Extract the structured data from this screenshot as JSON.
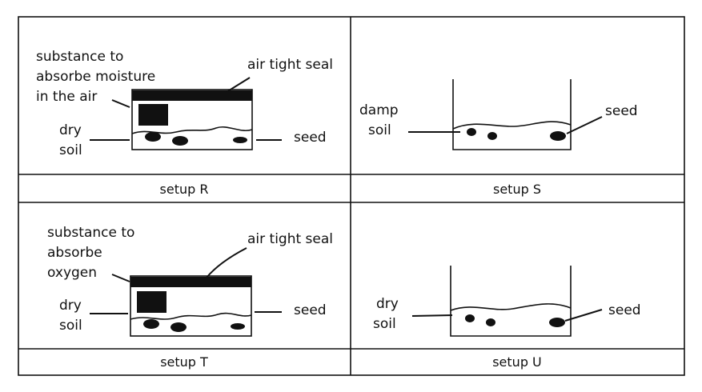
{
  "setups": {
    "r": {
      "caption": "setup R",
      "label_substance_1": "substance to",
      "label_substance_2": "absorbe moisture",
      "label_substance_3": "in the air",
      "label_seal": "air tight seal",
      "label_soil_1": "dry",
      "label_soil_2": "soil",
      "label_seed": "seed"
    },
    "s": {
      "caption": "setup S",
      "label_soil_1": "damp",
      "label_soil_2": "soil",
      "label_seed": "seed"
    },
    "t": {
      "caption": "setup T",
      "label_substance_1": "substance to",
      "label_substance_2": "absorbe",
      "label_substance_3": "oxygen",
      "label_seal": "air tight seal",
      "label_soil_1": "dry",
      "label_soil_2": "soil",
      "label_seed": "seed"
    },
    "u": {
      "caption": "setup U",
      "label_soil_1": "dry",
      "label_soil_2": "soil",
      "label_seed": "seed"
    }
  }
}
